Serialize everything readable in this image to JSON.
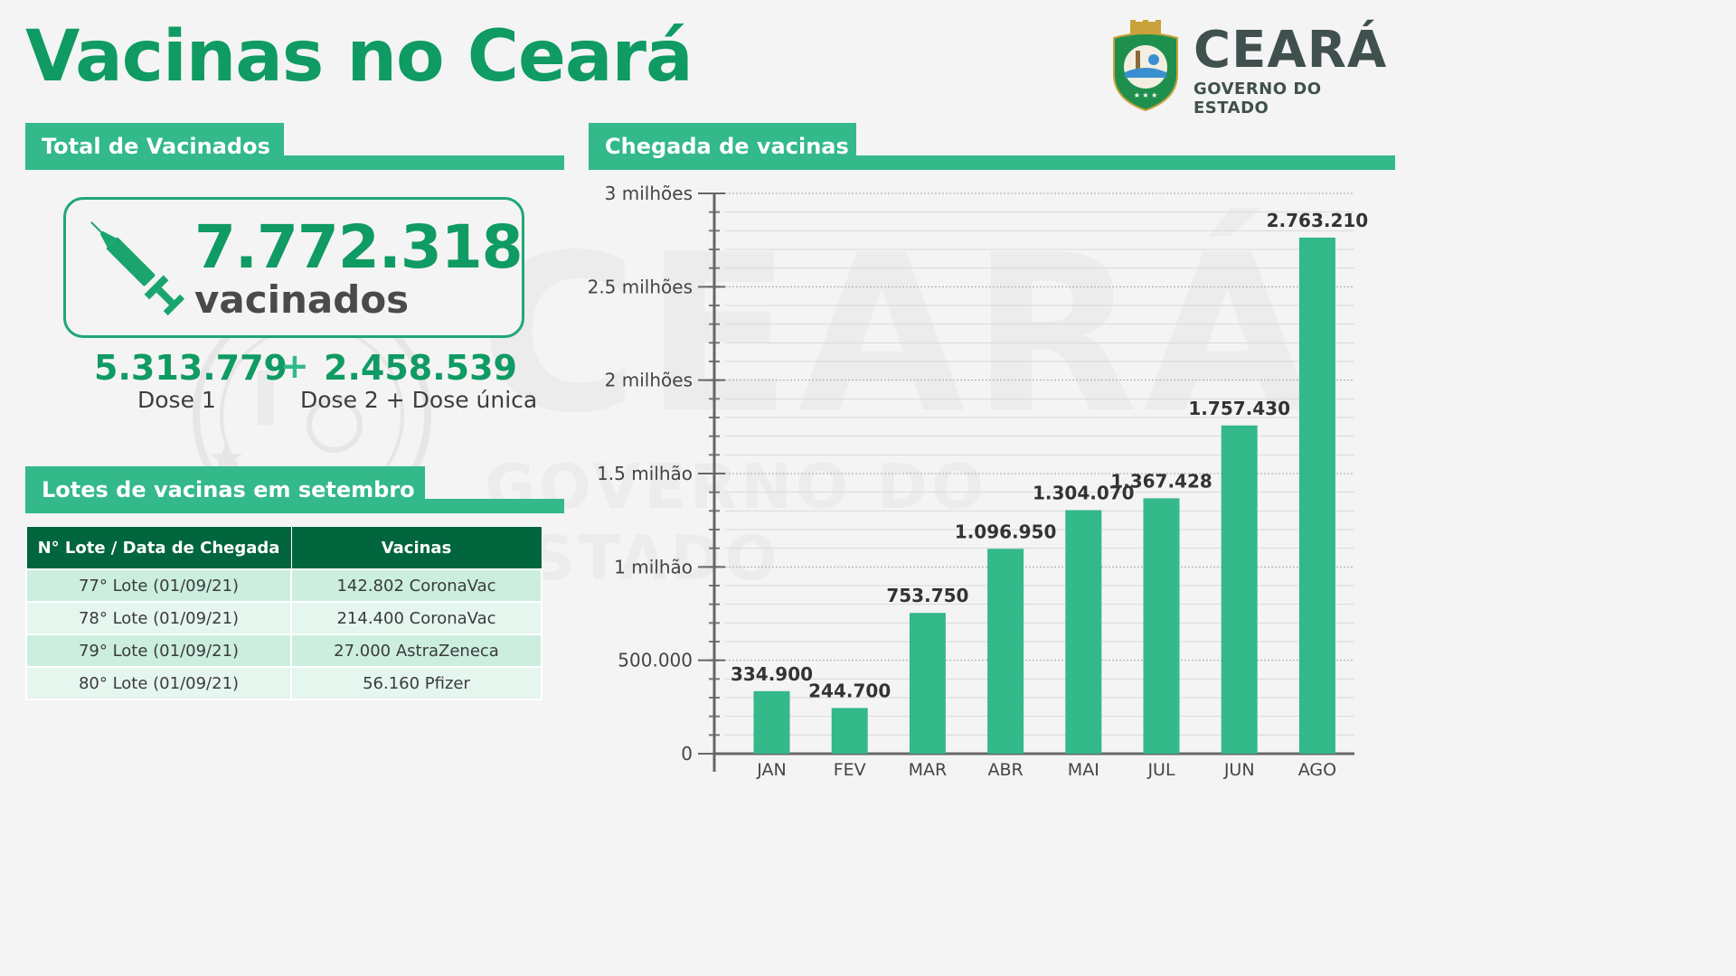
{
  "title": "Vacinas no Ceará",
  "logo": {
    "name": "CEARÁ",
    "subtitle": "GOVERNO DO ESTADO"
  },
  "watermark": {
    "big": "CEARÁ",
    "small": "GOVERNO DO ESTADO"
  },
  "total_section": {
    "header": "Total de Vacinados",
    "total": "7.772.318",
    "total_label": "vacinados",
    "dose1_value": "5.313.779",
    "plus": "+",
    "dose2_value": "2.458.539",
    "dose1_label": "Dose 1",
    "dose2_label": "Dose 2 + Dose única"
  },
  "lots_section": {
    "header": "Lotes de vacinas em setembro",
    "columns": [
      "N° Lote / Data de Chegada",
      "Vacinas"
    ],
    "rows": [
      [
        "77° Lote (01/09/21)",
        "142.802 CoronaVac"
      ],
      [
        "78° Lote (01/09/21)",
        "214.400 CoronaVac"
      ],
      [
        "79° Lote (01/09/21)",
        "27.000 AstraZeneca"
      ],
      [
        "80° Lote (01/09/21)",
        "56.160 Pfizer"
      ]
    ]
  },
  "chart_section": {
    "header": "Chegada de vacinas"
  },
  "colors": {
    "accent": "#33b98a",
    "dark_green": "#01653e",
    "title_green": "#0f9b63",
    "logo_grey": "#40504e"
  },
  "chart_data": {
    "type": "bar",
    "categories": [
      "JAN",
      "FEV",
      "MAR",
      "ABR",
      "MAI",
      "JUL",
      "JUN",
      "AGO"
    ],
    "values": [
      334900,
      244700,
      753750,
      1096950,
      1304070,
      1367428,
      1757430,
      2763210
    ],
    "value_labels": [
      "334.900",
      "244.700",
      "753.750",
      "1.096.950",
      "1.304.070",
      "1.367.428",
      "1.757.430",
      "2.763.210"
    ],
    "ylim": [
      0,
      3000000
    ],
    "yticks": [
      0,
      500000,
      1000000,
      1500000,
      2000000,
      2500000,
      3000000
    ],
    "ytick_labels": [
      "0",
      "500.000",
      "1 milhão",
      "1.5 milhão",
      "2 milhões",
      "2.5 milhões",
      "3 milhões"
    ],
    "grid": true,
    "bar_color": "#33b98a"
  }
}
